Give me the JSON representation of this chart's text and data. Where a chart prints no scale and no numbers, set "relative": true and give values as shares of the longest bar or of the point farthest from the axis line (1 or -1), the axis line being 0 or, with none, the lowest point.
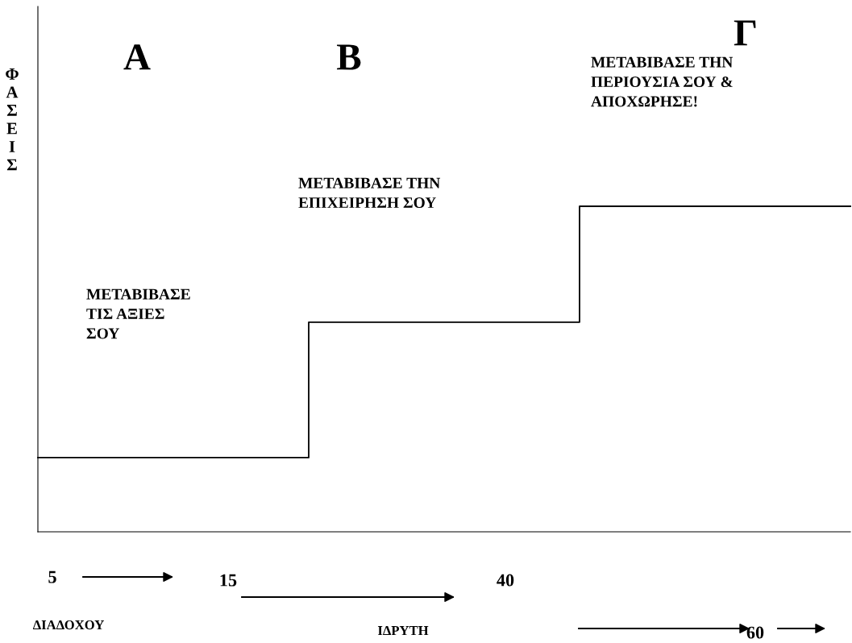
{
  "chart_data": {
    "type": "step",
    "relative": true,
    "ylabel": "ΦΑΣΕΙΣ",
    "categories": [
      null,
      null,
      null,
      null
    ],
    "series": [
      {
        "color": "#000000",
        "values": [
          0.228,
          0.644,
          1.0,
          1.0
        ]
      }
    ],
    "annotations": [
      "Α",
      "Β",
      "Γ",
      "ΜΕΤΑΒΙΒΑΣΕ\nΤΙΣ ΑΞΙΕΣ\nΣΟΥ",
      "ΜΕΤΑΒΙΒΑΣΕ ΤΗΝ\nΕΠΙΧΕΙΡΗΣΗ ΣΟΥ",
      "ΜΕΤΑΒΙΒΑΣΕ ΤΗΝ\nΠΕΡΙΟΥΣΙΑ ΣΟΥ &\nΑΠΟΧΩΡΗΣΕ!",
      "5",
      "15",
      "40",
      "ΔΙΑΔΟΧΟΥ",
      "ΙΔΡΥΤΗ",
      "60"
    ]
  }
}
